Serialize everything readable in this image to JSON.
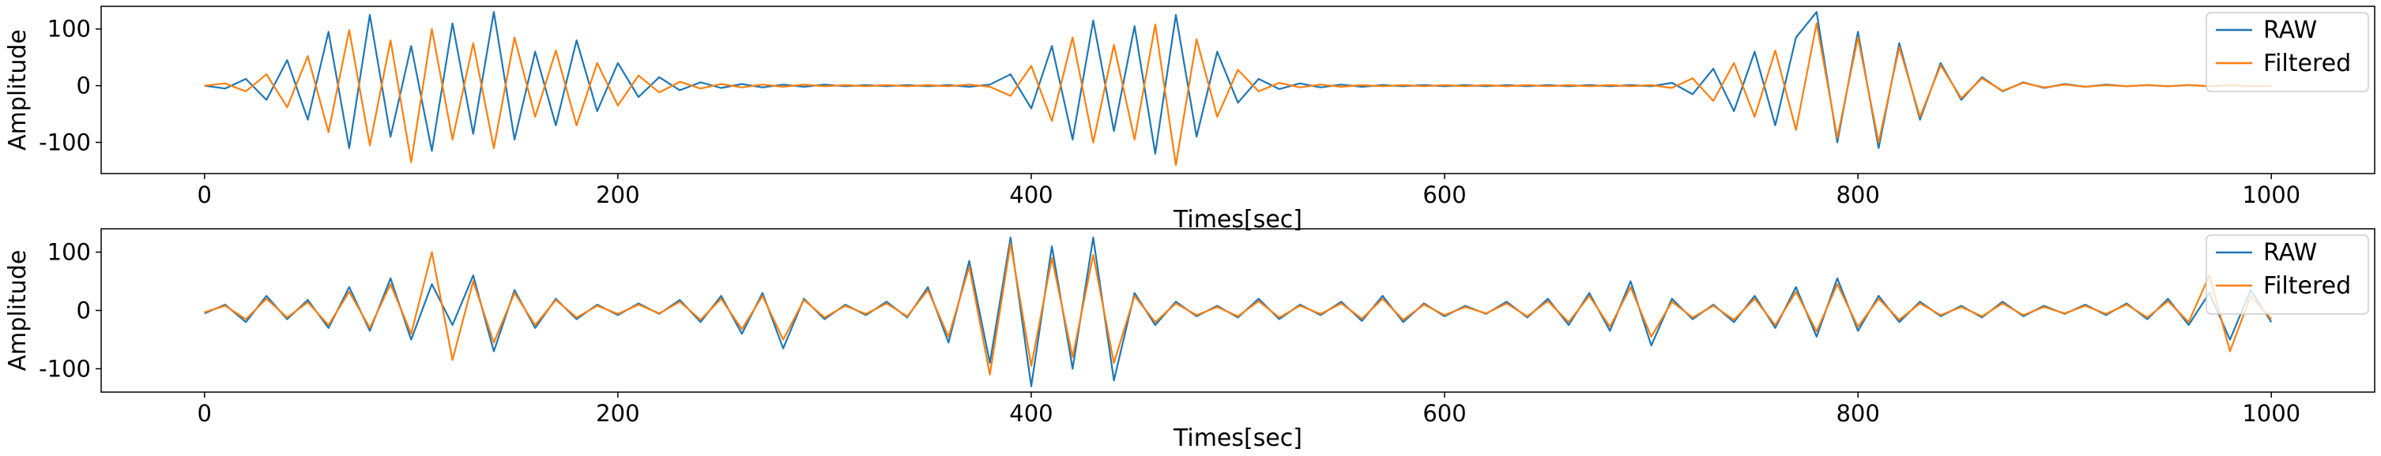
{
  "colors": {
    "raw": "#1f77b4",
    "filtered": "#ff7f0e"
  },
  "chart_data": [
    {
      "type": "line",
      "xlabel": "Times[sec]",
      "ylabel": "Amplitude",
      "xlim": [
        -50,
        1050
      ],
      "ylim": [
        -155,
        140
      ],
      "xticks": [
        0,
        200,
        400,
        600,
        800,
        1000
      ],
      "yticks": [
        -100,
        0,
        100
      ],
      "grid": false,
      "legend_position": "top-right",
      "series": [
        {
          "name": "RAW",
          "x": [
            0,
            10,
            20,
            30,
            40,
            50,
            60,
            70,
            80,
            90,
            100,
            110,
            120,
            130,
            140,
            150,
            160,
            170,
            180,
            190,
            200,
            210,
            220,
            230,
            240,
            250,
            260,
            270,
            280,
            290,
            300,
            310,
            320,
            330,
            340,
            350,
            360,
            370,
            380,
            390,
            400,
            410,
            420,
            430,
            440,
            450,
            460,
            470,
            480,
            490,
            500,
            510,
            520,
            530,
            540,
            550,
            560,
            570,
            580,
            590,
            600,
            610,
            620,
            630,
            640,
            650,
            660,
            670,
            680,
            690,
            700,
            710,
            720,
            730,
            740,
            750,
            760,
            770,
            780,
            790,
            800,
            810,
            820,
            830,
            840,
            850,
            860,
            870,
            880,
            890,
            900,
            910,
            920,
            930,
            940,
            950,
            960,
            970,
            980,
            990,
            1000
          ],
          "values": [
            0,
            -5,
            12,
            -25,
            45,
            -60,
            95,
            -110,
            125,
            -90,
            70,
            -115,
            110,
            -85,
            130,
            -95,
            60,
            -70,
            80,
            -45,
            40,
            -20,
            15,
            -8,
            6,
            -4,
            3,
            -3,
            2,
            -2,
            2,
            -1,
            1,
            -1,
            1,
            -1,
            1,
            -2,
            2,
            20,
            -40,
            70,
            -95,
            115,
            -80,
            105,
            -120,
            125,
            -90,
            60,
            -30,
            12,
            -6,
            4,
            -3,
            2,
            -2,
            1,
            -1,
            1,
            -1,
            1,
            -1,
            1,
            -1,
            1,
            -1,
            1,
            -1,
            1,
            -1,
            5,
            -15,
            30,
            -45,
            60,
            -70,
            85,
            130,
            -100,
            95,
            -110,
            75,
            -60,
            40,
            -25,
            15,
            -10,
            6,
            -4,
            3,
            -2,
            2,
            -1,
            1,
            -1,
            1,
            -1,
            1,
            -1,
            0
          ]
        },
        {
          "name": "Filtered",
          "x": [
            0,
            10,
            20,
            30,
            40,
            50,
            60,
            70,
            80,
            90,
            100,
            110,
            120,
            130,
            140,
            150,
            160,
            170,
            180,
            190,
            200,
            210,
            220,
            230,
            240,
            250,
            260,
            270,
            280,
            290,
            300,
            310,
            320,
            330,
            340,
            350,
            360,
            370,
            380,
            390,
            400,
            410,
            420,
            430,
            440,
            450,
            460,
            470,
            480,
            490,
            500,
            510,
            520,
            530,
            540,
            550,
            560,
            570,
            580,
            590,
            600,
            610,
            620,
            630,
            640,
            650,
            660,
            670,
            680,
            690,
            700,
            710,
            720,
            730,
            740,
            750,
            760,
            770,
            780,
            790,
            800,
            810,
            820,
            830,
            840,
            850,
            860,
            870,
            880,
            890,
            900,
            910,
            920,
            930,
            940,
            950,
            960,
            970,
            980,
            990,
            1000
          ],
          "values": [
            0,
            4,
            -10,
            20,
            -38,
            52,
            -82,
            98,
            -105,
            80,
            -135,
            100,
            -95,
            75,
            -110,
            85,
            -55,
            62,
            -70,
            40,
            -35,
            18,
            -12,
            7,
            -5,
            3,
            -3,
            2,
            -2,
            2,
            -1,
            1,
            -1,
            1,
            -1,
            1,
            -1,
            2,
            -2,
            -18,
            35,
            -62,
            85,
            -100,
            72,
            -95,
            108,
            -140,
            82,
            -55,
            28,
            -10,
            5,
            -3,
            2,
            -2,
            1,
            -1,
            1,
            -1,
            1,
            -1,
            1,
            -1,
            1,
            -1,
            1,
            -1,
            1,
            -1,
            1,
            -4,
            13,
            -27,
            40,
            -55,
            62,
            -78,
            110,
            -92,
            85,
            -100,
            68,
            -55,
            36,
            -22,
            13,
            -9,
            5,
            -3,
            2,
            -2,
            1,
            -1,
            1,
            -1,
            1,
            -1,
            1,
            -1,
            0
          ]
        }
      ]
    },
    {
      "type": "line",
      "xlabel": "Times[sec]",
      "ylabel": "Amplitude",
      "xlim": [
        -50,
        1050
      ],
      "ylim": [
        -140,
        140
      ],
      "xticks": [
        0,
        200,
        400,
        600,
        800,
        1000
      ],
      "yticks": [
        -100,
        0,
        100
      ],
      "grid": false,
      "legend_position": "top-right",
      "series": [
        {
          "name": "RAW",
          "x": [
            0,
            10,
            20,
            30,
            40,
            50,
            60,
            70,
            80,
            90,
            100,
            110,
            120,
            130,
            140,
            150,
            160,
            170,
            180,
            190,
            200,
            210,
            220,
            230,
            240,
            250,
            260,
            270,
            280,
            290,
            300,
            310,
            320,
            330,
            340,
            350,
            360,
            370,
            380,
            390,
            400,
            410,
            420,
            430,
            440,
            450,
            460,
            470,
            480,
            490,
            500,
            510,
            520,
            530,
            540,
            550,
            560,
            570,
            580,
            590,
            600,
            610,
            620,
            630,
            640,
            650,
            660,
            670,
            680,
            690,
            700,
            710,
            720,
            730,
            740,
            750,
            760,
            770,
            780,
            790,
            800,
            810,
            820,
            830,
            840,
            850,
            860,
            870,
            880,
            890,
            900,
            910,
            920,
            930,
            940,
            950,
            960,
            970,
            980,
            990,
            1000
          ],
          "values": [
            -5,
            10,
            -20,
            25,
            -15,
            18,
            -30,
            40,
            -35,
            55,
            -50,
            45,
            -25,
            60,
            -70,
            35,
            -30,
            20,
            -15,
            10,
            -8,
            12,
            -6,
            18,
            -20,
            25,
            -40,
            30,
            -65,
            20,
            -15,
            10,
            -8,
            15,
            -12,
            40,
            -55,
            85,
            -90,
            125,
            -130,
            110,
            -100,
            125,
            -120,
            30,
            -25,
            15,
            -10,
            8,
            -12,
            20,
            -15,
            10,
            -8,
            15,
            -18,
            25,
            -20,
            12,
            -10,
            8,
            -6,
            15,
            -12,
            20,
            -25,
            30,
            -35,
            50,
            -60,
            20,
            -15,
            10,
            -20,
            25,
            -30,
            40,
            -45,
            55,
            -35,
            25,
            -20,
            15,
            -10,
            8,
            -12,
            15,
            -10,
            8,
            -6,
            10,
            -8,
            12,
            -15,
            20,
            -25,
            30,
            -50,
            35,
            -20
          ]
        },
        {
          "name": "Filtered",
          "x": [
            0,
            10,
            20,
            30,
            40,
            50,
            60,
            70,
            80,
            90,
            100,
            110,
            120,
            130,
            140,
            150,
            160,
            170,
            180,
            190,
            200,
            210,
            220,
            230,
            240,
            250,
            260,
            270,
            280,
            290,
            300,
            310,
            320,
            330,
            340,
            350,
            360,
            370,
            380,
            390,
            400,
            410,
            420,
            430,
            440,
            450,
            460,
            470,
            480,
            490,
            500,
            510,
            520,
            530,
            540,
            550,
            560,
            570,
            580,
            590,
            600,
            610,
            620,
            630,
            640,
            650,
            660,
            670,
            680,
            690,
            700,
            710,
            720,
            730,
            740,
            750,
            760,
            770,
            780,
            790,
            800,
            810,
            820,
            830,
            840,
            850,
            860,
            870,
            880,
            890,
            900,
            910,
            920,
            930,
            940,
            950,
            960,
            970,
            980,
            990,
            1000
          ],
          "values": [
            -3,
            8,
            -15,
            20,
            -12,
            14,
            -25,
            32,
            -30,
            45,
            -40,
            100,
            -85,
            50,
            -55,
            30,
            -25,
            18,
            -12,
            8,
            -6,
            10,
            -5,
            15,
            -16,
            20,
            -32,
            25,
            -50,
            18,
            -12,
            8,
            -6,
            12,
            -10,
            35,
            -45,
            75,
            -110,
            115,
            -95,
            90,
            -80,
            95,
            -90,
            25,
            -20,
            12,
            -8,
            6,
            -10,
            16,
            -12,
            8,
            -6,
            12,
            -14,
            20,
            -16,
            10,
            -8,
            6,
            -5,
            12,
            -10,
            16,
            -20,
            25,
            -28,
            40,
            -45,
            15,
            -12,
            8,
            -16,
            20,
            -25,
            32,
            -36,
            45,
            -28,
            20,
            -16,
            12,
            -8,
            6,
            -10,
            12,
            -8,
            6,
            -5,
            8,
            -6,
            10,
            -12,
            16,
            -20,
            60,
            -70,
            25,
            -15
          ]
        }
      ]
    }
  ]
}
